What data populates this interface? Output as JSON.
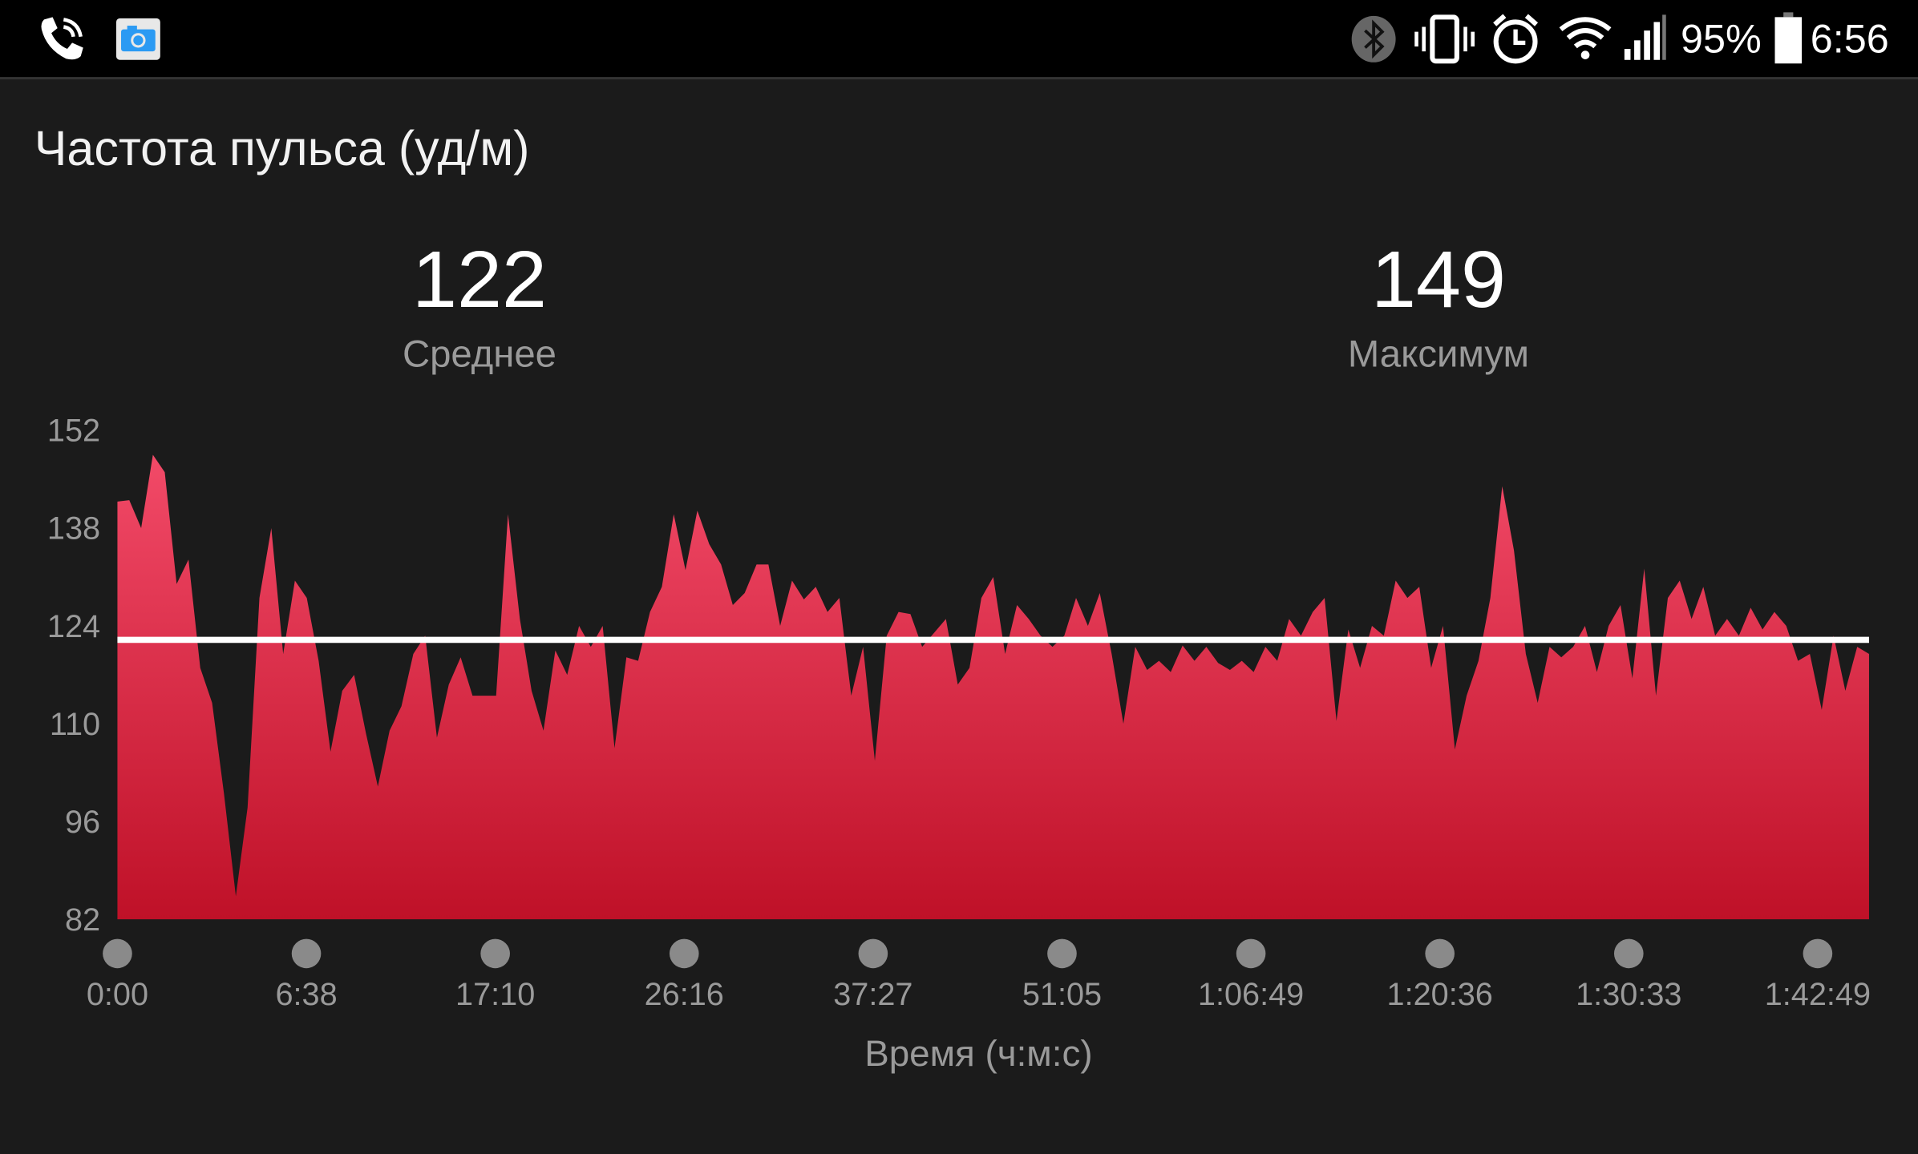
{
  "status_bar": {
    "left_icons": [
      "phone-call-icon",
      "camera-notification-icon"
    ],
    "right_icons": [
      "bluetooth-icon",
      "vibrate-icon",
      "alarm-icon",
      "wifi-icon",
      "signal-icon",
      "battery-icon"
    ],
    "battery": "95%",
    "time": "6:56"
  },
  "card": {
    "title": "Частота пульса (уд/м)",
    "stats": [
      {
        "value": "122",
        "label": "Среднее"
      },
      {
        "value": "149",
        "label": "Максимум"
      }
    ]
  },
  "chart_data": {
    "type": "area",
    "xlabel": "Время (ч:м:с)",
    "ylabel": "",
    "ylim": [
      82,
      152
    ],
    "y_ticks": [
      "152",
      "138",
      "124",
      "110",
      "96",
      "82"
    ],
    "x_ticks": [
      "0:00",
      "6:38",
      "17:10",
      "26:16",
      "37:27",
      "51:05",
      "1:06:49",
      "1:20:36",
      "1:30:33",
      "1:42:49"
    ],
    "reference_line": {
      "value": 122,
      "color": "#ffffff"
    },
    "fill_gradient": [
      "#f24a68",
      "#bf1128"
    ],
    "grid": false,
    "values": [
      141.8,
      142,
      138,
      148.5,
      146,
      130,
      133.5,
      118,
      113,
      100,
      85.3,
      98,
      128,
      138,
      120,
      130.5,
      128,
      119,
      106,
      114.7,
      117,
      108.6,
      101,
      109,
      112.5,
      120,
      122.6,
      108,
      115.6,
      119.5,
      114,
      114,
      114,
      140,
      125,
      114.7,
      109,
      120.5,
      117,
      124,
      121,
      124,
      106.5,
      119.5,
      119,
      126,
      129.6,
      140,
      132,
      140.5,
      135.7,
      132.8,
      127,
      128.7,
      132.8,
      132.8,
      124,
      130.5,
      127.8,
      129.6,
      126,
      128,
      114,
      121,
      104.7,
      122.6,
      126,
      125.7,
      121,
      123,
      125,
      115.6,
      118,
      128,
      131,
      120,
      127,
      125,
      122.6,
      121,
      122.6,
      128,
      124,
      128.7,
      120,
      110,
      121,
      117.7,
      119,
      117.4,
      121.2,
      119,
      121,
      118.7,
      117.7,
      119,
      117.4,
      121,
      119,
      125,
      122.6,
      126,
      128,
      110.4,
      123.5,
      118,
      124,
      122.6,
      130.5,
      128,
      129.6,
      118,
      124,
      106.3,
      114,
      119,
      128,
      144,
      134.8,
      120,
      113,
      121,
      119.5,
      121,
      124,
      117.4,
      124,
      127,
      116.5,
      132.2,
      114,
      128,
      130.5,
      125,
      129.6,
      122.6,
      125,
      122.6,
      126.6,
      123.5,
      126,
      124,
      119,
      120,
      112,
      122.6,
      114.7,
      121,
      120
    ]
  }
}
